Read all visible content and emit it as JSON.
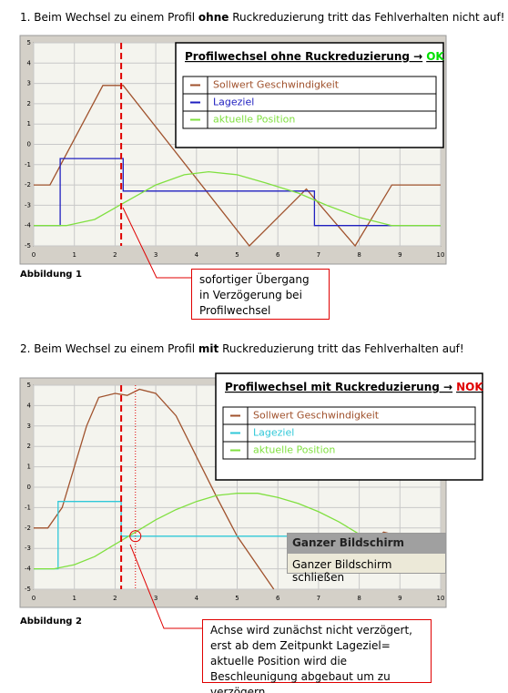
{
  "sections": [
    {
      "heading": [
        "1. Beim Wechsel zu einem Profil ",
        "ohne",
        " Ruckreduzierung tritt das Fehlverhalten nicht auf!"
      ],
      "figure_label": "Abbildung 1",
      "callout": "sofortiger Übergang in Verzögerung bei Profilwechsel",
      "chart": {
        "type": "line",
        "xlim": [
          0,
          10
        ],
        "ylim": [
          -5,
          5
        ],
        "xticks": [
          0,
          1,
          2,
          3,
          4,
          5,
          6,
          7,
          8,
          9,
          10
        ],
        "yticks": [
          5,
          4,
          3,
          2,
          1,
          0,
          -1,
          -2,
          -3,
          -4,
          -5
        ],
        "grid": true,
        "legend_title": "Profilwechsel ohne Ruckreduzierung →",
        "legend_status": "OK",
        "status_color": "#00e000",
        "markers": [
          {
            "x": 2.15,
            "style": "dashed"
          }
        ],
        "series": [
          {
            "name": "Sollwert Geschwindigkeit",
            "color": "#a0522d",
            "x": [
              0,
              0.4,
              1.7,
              2.2,
              5.3,
              6.7,
              7.9,
              8.8,
              10
            ],
            "values": [
              -2,
              -2,
              2.9,
              2.9,
              -5,
              -2.2,
              -5,
              -2,
              -2
            ]
          },
          {
            "name": "Lageziel",
            "color": "#2020c0",
            "x": [
              0,
              0.65,
              0.65,
              2.2,
              2.2,
              6.9,
              6.9,
              10
            ],
            "values": [
              -4,
              -4,
              -0.7,
              -0.7,
              -2.3,
              -2.3,
              -4,
              -4
            ]
          },
          {
            "name": "aktuelle Position",
            "color": "#80e040",
            "x": [
              0,
              0.8,
              1.5,
              2.2,
              3,
              3.7,
              4.3,
              5,
              5.7,
              6.5,
              7.2,
              8,
              8.8,
              10
            ],
            "values": [
              -4,
              -4,
              -3.7,
              -2.9,
              -2,
              -1.5,
              -1.35,
              -1.5,
              -1.9,
              -2.4,
              -3,
              -3.6,
              -4,
              -4
            ]
          }
        ]
      }
    },
    {
      "heading": [
        "2. Beim Wechsel zu einem Profil ",
        "mit",
        " Ruckreduzierung tritt das Fehlverhalten auf!"
      ],
      "figure_label": "Abbildung 2",
      "callout": "Achse wird zunächst nicht verzögert, erst ab dem Zeitpunkt Lageziel= aktuelle Position wird die Beschleunigung abgebaut um zu verzögern",
      "popup": {
        "title": "Ganzer Bildschirm",
        "item": "Ganzer Bildschirm schließen"
      },
      "chart": {
        "type": "line",
        "xlim": [
          0,
          10
        ],
        "ylim": [
          -5,
          5
        ],
        "xticks": [
          0,
          1,
          2,
          3,
          4,
          5,
          6,
          7,
          8,
          9,
          10
        ],
        "yticks": [
          5,
          4,
          3,
          2,
          1,
          0,
          -1,
          -2,
          -3,
          -4,
          -5
        ],
        "grid": true,
        "legend_title": "Profilwechsel mit Ruckreduzierung →",
        "legend_status": "NOK",
        "status_color": "#e00000",
        "markers": [
          {
            "x": 2.15,
            "style": "dashed"
          },
          {
            "x": 2.5,
            "style": "dotted"
          }
        ],
        "circle": {
          "x": 2.5,
          "y": -2.4
        },
        "series": [
          {
            "name": "Sollwert Geschwindigkeit",
            "color": "#a0522d",
            "x": [
              0,
              0.35,
              0.7,
              1.0,
              1.3,
              1.6,
              2.0,
              2.3,
              2.6,
              3.0,
              3.5,
              4.0,
              4.5,
              5.0,
              5.9,
              null,
              8,
              8.6,
              9.2
            ],
            "values": [
              -2,
              -2,
              -1,
              1,
              3,
              4.4,
              4.6,
              4.5,
              4.8,
              4.6,
              3.5,
              1.5,
              -0.5,
              -2.4,
              -5,
              null,
              -3.2,
              -2.2,
              -2.5
            ]
          },
          {
            "name": "Lageziel",
            "color": "#30c8d8",
            "x": [
              0,
              0.6,
              0.6,
              2.15,
              2.15,
              6.3
            ],
            "values": [
              -4,
              -4,
              -0.7,
              -0.7,
              -2.4,
              -2.4
            ]
          },
          {
            "name": "aktuelle Position",
            "color": "#80e040",
            "x": [
              0,
              0.5,
              1,
              1.5,
              2,
              2.5,
              3,
              3.5,
              4,
              4.5,
              5,
              5.5,
              6,
              6.5,
              7,
              7.5,
              8,
              8.5,
              9,
              9.5,
              10
            ],
            "values": [
              -4,
              -4,
              -3.8,
              -3.4,
              -2.8,
              -2.2,
              -1.6,
              -1.1,
              -0.7,
              -0.4,
              -0.3,
              -0.3,
              -0.5,
              -0.8,
              -1.2,
              -1.7,
              -2.3,
              -2.8,
              -3.3,
              -3.6,
              -3.8
            ]
          }
        ]
      }
    }
  ]
}
